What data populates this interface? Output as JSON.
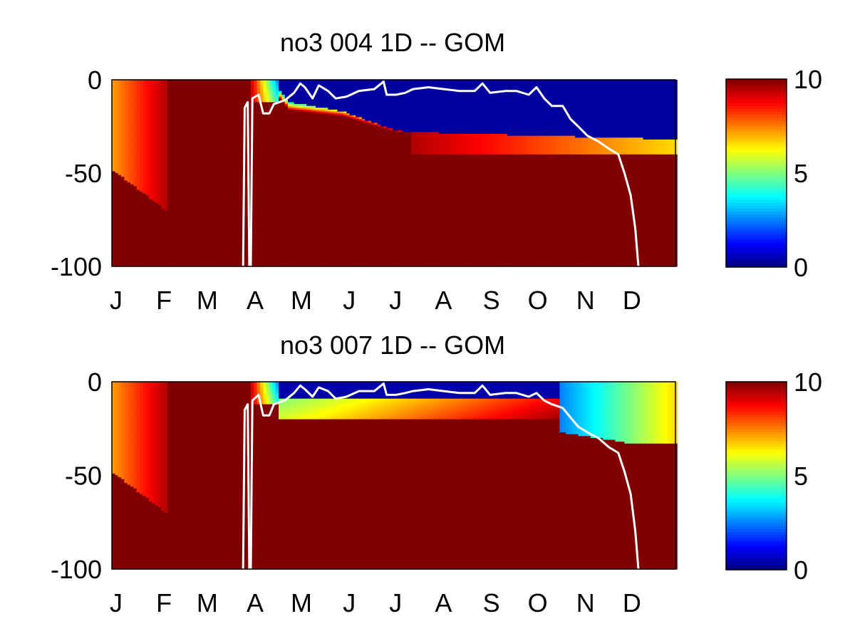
{
  "chart_data": [
    {
      "type": "heatmap",
      "title": "no3  004 1D   -- GOM",
      "xlabel": "",
      "ylabel": "",
      "x_ticks": [
        "J",
        "F",
        "M",
        "A",
        "M",
        "J",
        "J",
        "A",
        "S",
        "O",
        "N",
        "D"
      ],
      "x_tick_days": [
        0,
        31,
        59,
        90,
        120,
        151,
        181,
        212,
        243,
        273,
        304,
        334
      ],
      "xlim": [
        0,
        365
      ],
      "y_ticks": [
        "0",
        "-50",
        "-100"
      ],
      "y_tick_values": [
        0,
        -50,
        -100
      ],
      "ylim": [
        -100,
        0
      ],
      "colorbar": {
        "ticks": [
          "0",
          "5",
          "10"
        ],
        "tick_values": [
          0,
          5,
          10
        ],
        "clim": [
          0,
          10
        ],
        "colormap": "jet"
      },
      "field_description": "NO3 concentration vs. day of year (x) and depth (y); values above 10 saturate dark red",
      "field": {
        "winter_column": {
          "start_day": 0,
          "end_day": 37,
          "surface_value_start": 7.2,
          "surface_value_end": 9.6,
          "base_depth_start": -48,
          "base_depth_end": -71
        },
        "spring_bloom_start_day": 90,
        "surface_depleted_layer": {
          "start_day": 108,
          "end_day": 365,
          "value": 0.3,
          "base_depth_by_day": [
            [
              108,
              -5
            ],
            [
              115,
              -12
            ],
            [
              150,
              -17
            ],
            [
              180,
              -26
            ],
            [
              190,
              -28
            ],
            [
              365,
              -32
            ]
          ]
        },
        "nitracline_layer": {
          "start_day": 195,
          "end_day": 365,
          "value_start": 9.5,
          "value_end": 6.6,
          "top_depth": -33,
          "base_depth": -40
        }
      },
      "line_series": {
        "name": "",
        "color": "#ffffff",
        "points": [
          [
            85,
            -100
          ],
          [
            86,
            -15
          ],
          [
            88,
            -12
          ],
          [
            89,
            -100
          ],
          [
            90,
            -100
          ],
          [
            91,
            -10
          ],
          [
            95,
            -8
          ],
          [
            98,
            -18
          ],
          [
            102,
            -18
          ],
          [
            105,
            -13
          ],
          [
            112,
            -11
          ],
          [
            118,
            -7
          ],
          [
            122,
            -2
          ],
          [
            125,
            -4
          ],
          [
            130,
            -10
          ],
          [
            134,
            -3
          ],
          [
            140,
            -6
          ],
          [
            145,
            -10
          ],
          [
            152,
            -9
          ],
          [
            160,
            -6
          ],
          [
            170,
            -5
          ],
          [
            176,
            -1
          ],
          [
            178,
            -8
          ],
          [
            184,
            -8
          ],
          [
            190,
            -7
          ],
          [
            195,
            -5
          ],
          [
            205,
            -4
          ],
          [
            215,
            -5
          ],
          [
            225,
            -6
          ],
          [
            235,
            -6
          ],
          [
            240,
            -2
          ],
          [
            245,
            -7
          ],
          [
            255,
            -6
          ],
          [
            262,
            -6
          ],
          [
            270,
            -8
          ],
          [
            275,
            -4
          ],
          [
            280,
            -10
          ],
          [
            285,
            -14
          ],
          [
            292,
            -14
          ],
          [
            297,
            -21
          ],
          [
            302,
            -25
          ],
          [
            308,
            -30
          ],
          [
            315,
            -33
          ],
          [
            322,
            -37
          ],
          [
            328,
            -40
          ],
          [
            332,
            -50
          ],
          [
            336,
            -62
          ],
          [
            339,
            -80
          ],
          [
            341,
            -100
          ]
        ]
      }
    },
    {
      "type": "heatmap",
      "title": "no3  007 1D   -- GOM",
      "xlabel": "",
      "ylabel": "",
      "x_ticks": [
        "J",
        "F",
        "M",
        "A",
        "M",
        "J",
        "J",
        "A",
        "S",
        "O",
        "N",
        "D"
      ],
      "x_tick_days": [
        0,
        31,
        59,
        90,
        120,
        151,
        181,
        212,
        243,
        273,
        304,
        334
      ],
      "xlim": [
        0,
        365
      ],
      "y_ticks": [
        "0",
        "-50",
        "-100"
      ],
      "y_tick_values": [
        0,
        -50,
        -100
      ],
      "ylim": [
        -100,
        0
      ],
      "colorbar": {
        "ticks": [
          "0",
          "5",
          "10"
        ],
        "tick_values": [
          0,
          5,
          10
        ],
        "clim": [
          0,
          10
        ],
        "colormap": "jet"
      },
      "field_description": "NO3 concentration vs. day of year (x) and depth (y); values above 10 saturate dark red",
      "field": {
        "winter_column": {
          "start_day": 0,
          "end_day": 37,
          "surface_value_start": 7.2,
          "surface_value_end": 9.6,
          "base_depth_start": -48,
          "base_depth_end": -71
        },
        "spring_bloom_start_day": 90,
        "surface_depleted_layer": {
          "start_day": 108,
          "end_day": 290,
          "value": 0.4,
          "base_depth": -9
        },
        "nitracline_layer": {
          "start_day": 108,
          "end_day": 290,
          "value_start": 5.0,
          "value_end": 8.8,
          "top_depth": -9,
          "base_depth": -20
        },
        "autumn_mixed_layer": {
          "start_day": 290,
          "end_day": 365,
          "value_start": 2.5,
          "value_end": 6.6,
          "base_depth_start": -27,
          "base_depth_end": -33
        }
      },
      "line_series": {
        "name": "",
        "color": "#ffffff",
        "points": [
          [
            85,
            -100
          ],
          [
            86,
            -15
          ],
          [
            88,
            -12
          ],
          [
            89,
            -100
          ],
          [
            90,
            -100
          ],
          [
            91,
            -10
          ],
          [
            95,
            -7
          ],
          [
            98,
            -18
          ],
          [
            102,
            -18
          ],
          [
            105,
            -12
          ],
          [
            112,
            -10
          ],
          [
            118,
            -6
          ],
          [
            122,
            -2
          ],
          [
            125,
            -4
          ],
          [
            130,
            -8
          ],
          [
            134,
            -3
          ],
          [
            140,
            -5
          ],
          [
            145,
            -9
          ],
          [
            152,
            -8
          ],
          [
            160,
            -5
          ],
          [
            170,
            -5
          ],
          [
            176,
            -1
          ],
          [
            178,
            -7
          ],
          [
            184,
            -7
          ],
          [
            190,
            -6
          ],
          [
            195,
            -5
          ],
          [
            205,
            -4
          ],
          [
            215,
            -5
          ],
          [
            225,
            -6
          ],
          [
            235,
            -6
          ],
          [
            240,
            -2
          ],
          [
            245,
            -7
          ],
          [
            255,
            -6
          ],
          [
            262,
            -6
          ],
          [
            270,
            -8
          ],
          [
            275,
            -6
          ],
          [
            280,
            -10
          ],
          [
            285,
            -12
          ],
          [
            292,
            -14
          ],
          [
            297,
            -19
          ],
          [
            302,
            -24
          ],
          [
            308,
            -27
          ],
          [
            315,
            -30
          ],
          [
            322,
            -35
          ],
          [
            328,
            -38
          ],
          [
            332,
            -48
          ],
          [
            336,
            -60
          ],
          [
            339,
            -80
          ],
          [
            341,
            -100
          ]
        ]
      }
    }
  ]
}
